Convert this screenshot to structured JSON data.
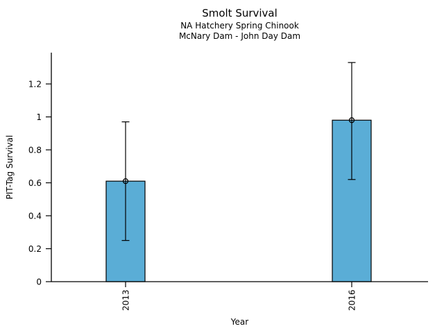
{
  "chart_data": {
    "type": "bar",
    "title": "Smolt Survival",
    "subtitle1": "NA Hatchery Spring Chinook",
    "subtitle2": "McNary Dam - John Day Dam",
    "xlabel": "Year",
    "ylabel": "PIT-Tag Survival",
    "categories": [
      "2013",
      "2016"
    ],
    "values": [
      0.61,
      0.98
    ],
    "error_low": [
      0.25,
      0.62
    ],
    "error_high": [
      0.97,
      1.33
    ],
    "yticks": [
      0,
      0.2,
      0.4,
      0.6,
      0.8,
      1,
      1.2
    ],
    "ytick_labels": [
      "0",
      "0.2",
      "0.4",
      "0.6",
      "0.8",
      "1",
      "1.2"
    ],
    "ylim": [
      0,
      1.39
    ],
    "grid": false,
    "legend": "none",
    "bar_color": "#5aadd6",
    "bar_edge_color": "#000000",
    "error_bar_color": "#000000",
    "marker": "open-circle",
    "background_color": "#ffffff",
    "text_color": "#000000"
  }
}
